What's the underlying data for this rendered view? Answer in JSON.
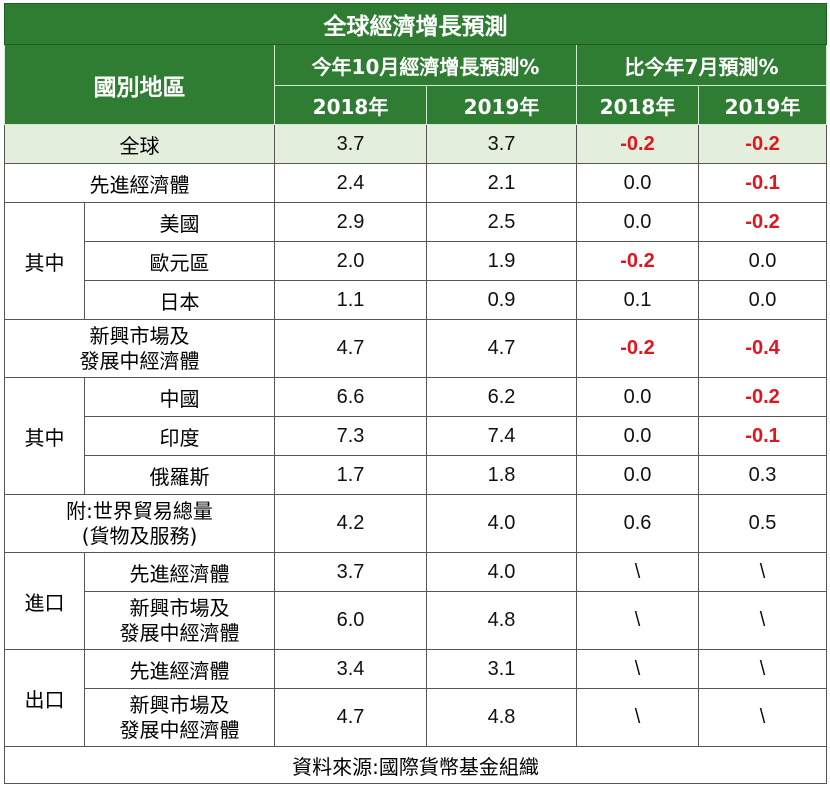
{
  "title": "全球經濟增長預測",
  "header": {
    "region": "國別地區",
    "group_a": "今年10月經濟增長預測%",
    "group_b": "比今年7月預測%",
    "years": [
      "2018年",
      "2019年",
      "2018年",
      "2019年"
    ]
  },
  "colors": {
    "header_green": "#2e7d32",
    "negative_red": "#e0161f",
    "highlight_row": "#e4eedc"
  },
  "rows": {
    "global": {
      "label": "全球",
      "values": [
        "3.7",
        "3.7",
        "-0.2",
        "-0.2"
      ]
    },
    "advanced": {
      "label": "先進經濟體",
      "values": [
        "2.4",
        "2.1",
        "0.0",
        "-0.1"
      ]
    },
    "advanced_group_label": "其中",
    "us": {
      "label": "美國",
      "values": [
        "2.9",
        "2.5",
        "0.0",
        "-0.2"
      ]
    },
    "euro": {
      "label": "歐元區",
      "values": [
        "2.0",
        "1.9",
        "-0.2",
        "0.0"
      ]
    },
    "japan": {
      "label": "日本",
      "values": [
        "1.1",
        "0.9",
        "0.1",
        "0.0"
      ]
    },
    "emerging": {
      "label_line1": "新興市場及",
      "label_line2": "發展中經濟體",
      "values": [
        "4.7",
        "4.7",
        "-0.2",
        "-0.4"
      ]
    },
    "emerging_group_label": "其中",
    "china": {
      "label": "中國",
      "values": [
        "6.6",
        "6.2",
        "0.0",
        "-0.2"
      ]
    },
    "india": {
      "label": "印度",
      "values": [
        "7.3",
        "7.4",
        "0.0",
        "-0.1"
      ]
    },
    "russia": {
      "label": "俄羅斯",
      "values": [
        "1.7",
        "1.8",
        "0.0",
        "0.3"
      ]
    },
    "trade": {
      "label_line1": "附:世界貿易總量",
      "label_line2": "(貨物及服務)",
      "values": [
        "4.2",
        "4.0",
        "0.6",
        "0.5"
      ]
    },
    "import_label": "進口",
    "import_adv": {
      "label": "先進經濟體",
      "values": [
        "3.7",
        "4.0",
        "\\",
        "\\"
      ]
    },
    "import_em": {
      "label_line1": "新興市場及",
      "label_line2": "發展中經濟體",
      "values": [
        "6.0",
        "4.8",
        "\\",
        "\\"
      ]
    },
    "export_label": "出口",
    "export_adv": {
      "label": "先進經濟體",
      "values": [
        "3.4",
        "3.1",
        "\\",
        "\\"
      ]
    },
    "export_em": {
      "label_line1": "新興市場及",
      "label_line2": "發展中經濟體",
      "values": [
        "4.7",
        "4.8",
        "\\",
        "\\"
      ]
    }
  },
  "source": "資料來源:國際貨幣基金組織"
}
